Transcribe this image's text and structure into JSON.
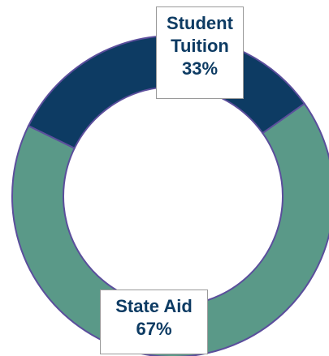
{
  "chart_data": {
    "type": "pie",
    "donut": true,
    "title": "",
    "slices": [
      {
        "label": "Student Tuition",
        "label_lines": [
          "Student",
          "Tuition"
        ],
        "value": 33,
        "percent_label": "33%"
      },
      {
        "label": "State Aid",
        "label_lines": [
          "State Aid"
        ],
        "value": 67,
        "percent_label": "67%"
      }
    ],
    "colors": {
      "Student Tuition": "#0d3b63",
      "State Aid": "#5a9988",
      "slice_border": "#5b4e9c",
      "label_text": "#0d3b63"
    }
  }
}
